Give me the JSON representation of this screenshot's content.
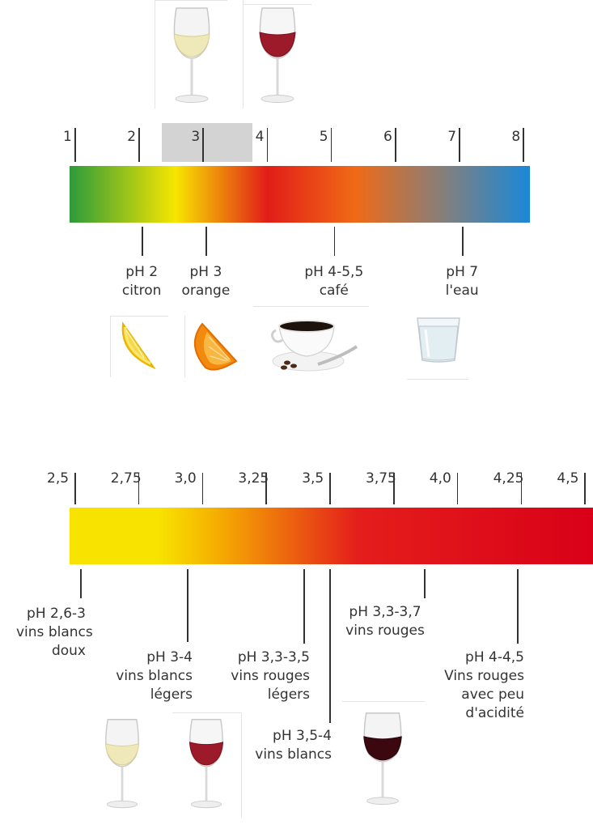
{
  "colors": {
    "scale1_gradient": [
      "#2d9b3a",
      "#f7e600",
      "#e11d18",
      "#f06a16",
      "#808080",
      "#1a88d8"
    ],
    "scale2_gradient": [
      "#f8e300",
      "#f6b400",
      "#e41e1b",
      "#d90018"
    ],
    "wine_range_highlight": "#d3d3d3"
  },
  "scale1": {
    "ticks": [
      "1",
      "2",
      "3",
      "4",
      "5",
      "6",
      "7",
      "8"
    ],
    "highlight_range": [
      3,
      4.5
    ],
    "annotations": [
      {
        "ph": 2,
        "line1": "pH 2",
        "line2": "citron",
        "icon": "lemon-icon"
      },
      {
        "ph": 3,
        "line1": "pH 3",
        "line2": "orange",
        "icon": "orange-icon"
      },
      {
        "ph": 5,
        "line1": "pH 4-5,5",
        "line2": "café",
        "icon": "coffee-cup-icon"
      },
      {
        "ph": 7,
        "line1": "pH 7",
        "line2": "l'eau",
        "icon": "water-glass-icon"
      }
    ]
  },
  "scale2": {
    "ticks": [
      "2,5",
      "2,75",
      "3,0",
      "3,25",
      "3,5",
      "3,75",
      "4,0",
      "4,25",
      "4,5"
    ],
    "annotations": [
      {
        "ph": 2.55,
        "lines": [
          "pH 2,6-3",
          "vins blancs",
          "doux"
        ]
      },
      {
        "ph": 3.0,
        "lines": [
          "pH 3-4",
          "vins blancs",
          "légers"
        ]
      },
      {
        "ph": 3.42,
        "lines": [
          "pH 3,3-3,5",
          "vins rouges",
          "légers"
        ]
      },
      {
        "ph": 3.5,
        "lines": [
          "pH 3,5-4",
          "vins blancs"
        ]
      },
      {
        "ph": 3.87,
        "lines": [
          "pH 3,3-3,7",
          "vins rouges"
        ]
      },
      {
        "ph": 4.25,
        "lines": [
          "pH 4-4,5",
          "Vins rouges",
          "avec peu",
          "d'acidité"
        ]
      }
    ]
  }
}
